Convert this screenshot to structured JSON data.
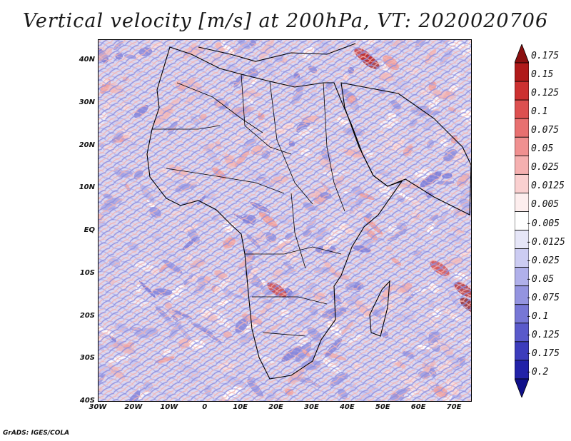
{
  "title": "Vertical velocity [m/s] at 200hPa, VT: 2020020706",
  "footer": "GrADS: IGES/COLA",
  "map": {
    "region": "Africa",
    "lon_range": [
      -30,
      75
    ],
    "lat_range": [
      -40,
      45
    ],
    "lat_labels": [
      "40N",
      "30N",
      "20N",
      "10N",
      "EQ",
      "10S",
      "20S",
      "30S",
      "40S"
    ],
    "lon_labels": [
      "30W",
      "20W",
      "10W",
      "0",
      "10E",
      "20E",
      "30E",
      "40E",
      "50E",
      "60E",
      "70E"
    ]
  },
  "colorbar": {
    "levels": [
      "0.175",
      "0.15",
      "0.125",
      "0.1",
      "0.075",
      "0.05",
      "0.025",
      "0.0125",
      "0.005",
      "-0.005",
      "-0.0125",
      "-0.025",
      "-0.05",
      "-0.075",
      "-0.1",
      "-0.125",
      "-0.175",
      "-0.2"
    ],
    "colors": [
      "#8b1010",
      "#b01a1a",
      "#cc3030",
      "#dd5050",
      "#e87070",
      "#f09090",
      "#f5b0b0",
      "#fad0d0",
      "#fdeeee",
      "#ffffff",
      "#e6e6f8",
      "#ccccf2",
      "#b0b0ea",
      "#9494e0",
      "#7777d6",
      "#5a5acb",
      "#3c3cbc",
      "#2222a8",
      "#10108a"
    ]
  }
}
